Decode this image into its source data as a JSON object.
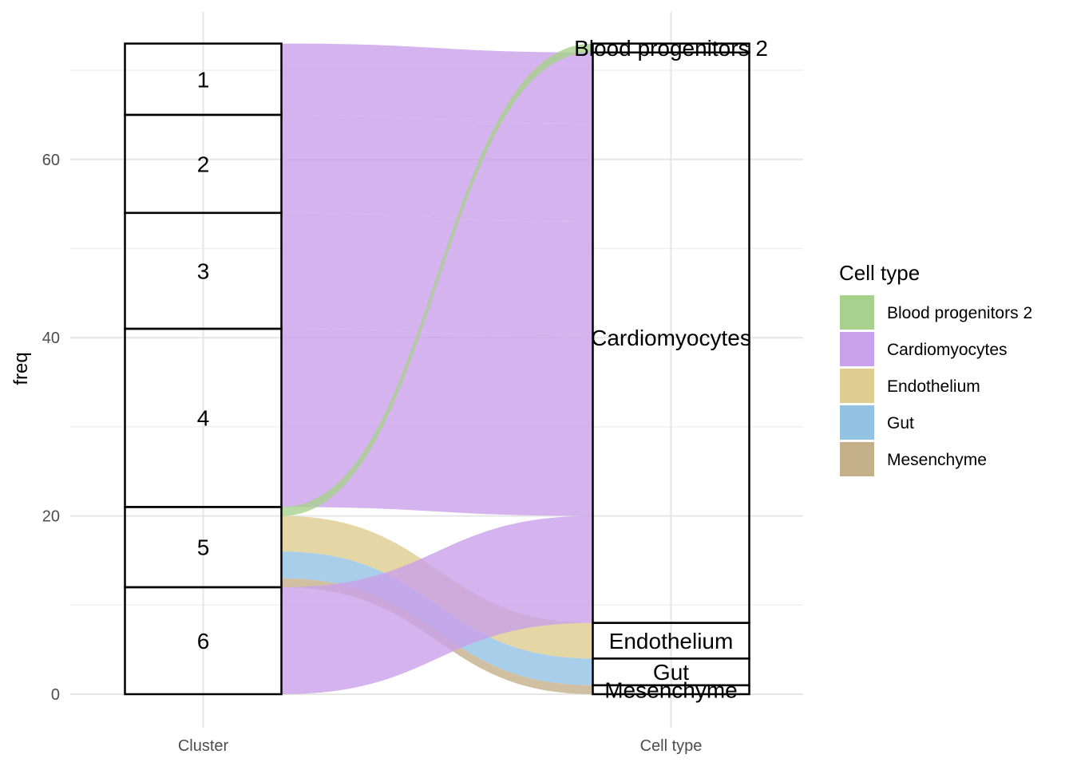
{
  "chart_data": {
    "type": "alluvial",
    "axes": [
      "Cluster",
      "Cell type"
    ],
    "ylabel": "freq",
    "ylim": [
      -2.5,
      76
    ],
    "y_ticks": [
      0,
      20,
      40,
      60
    ],
    "grid": true,
    "legend": {
      "title": "Cell type",
      "placement": "right",
      "entries": [
        {
          "name": "Blood progenitors 2",
          "color": "#a8d18d"
        },
        {
          "name": "Cardiomyocytes",
          "color": "#c9a0ea"
        },
        {
          "name": "Endothelium",
          "color": "#dfcc8f"
        },
        {
          "name": "Gut",
          "color": "#93c2e3"
        },
        {
          "name": "Mesenchyme",
          "color": "#c4b089"
        }
      ]
    },
    "clusters": [
      "1",
      "2",
      "3",
      "4",
      "5",
      "6"
    ],
    "cell_types": [
      "Blood progenitors 2",
      "Cardiomyocytes",
      "Endothelium",
      "Gut",
      "Mesenchyme"
    ],
    "flows": [
      {
        "cluster": "1",
        "cell_type": "Cardiomyocytes",
        "freq": 8
      },
      {
        "cluster": "2",
        "cell_type": "Cardiomyocytes",
        "freq": 11
      },
      {
        "cluster": "3",
        "cell_type": "Cardiomyocytes",
        "freq": 13
      },
      {
        "cluster": "4",
        "cell_type": "Cardiomyocytes",
        "freq": 20
      },
      {
        "cluster": "5",
        "cell_type": "Blood progenitors 2",
        "freq": 1
      },
      {
        "cluster": "5",
        "cell_type": "Endothelium",
        "freq": 4
      },
      {
        "cluster": "5",
        "cell_type": "Gut",
        "freq": 3
      },
      {
        "cluster": "5",
        "cell_type": "Mesenchyme",
        "freq": 1
      },
      {
        "cluster": "6",
        "cell_type": "Cardiomyocytes",
        "freq": 12
      }
    ]
  }
}
